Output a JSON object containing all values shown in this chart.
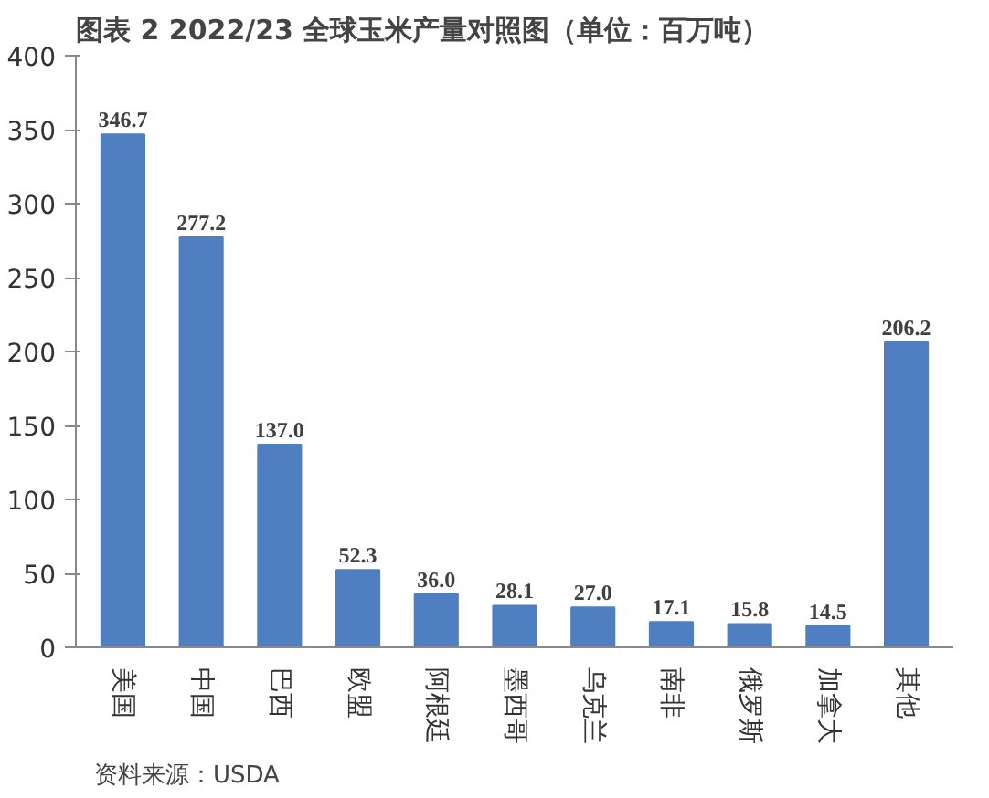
{
  "chart_data": {
    "type": "bar",
    "title": "图表 2 2022/23 全球玉米产量对照图（单位：百万吨）",
    "categories": [
      "美国",
      "中国",
      "巴西",
      "欧盟",
      "阿根廷",
      "墨西哥",
      "乌克兰",
      "南非",
      "俄罗斯",
      "加拿大",
      "其他"
    ],
    "values": [
      346.7,
      277.2,
      137.0,
      52.3,
      36.0,
      28.1,
      27.0,
      17.1,
      15.8,
      14.5,
      206.2
    ],
    "value_labels": [
      "346.7",
      "277.2",
      "137.0",
      "52.3",
      "36.0",
      "28.1",
      "27.0",
      "17.1",
      "15.8",
      "14.5",
      "206.2"
    ],
    "color": "#4f7fc1",
    "ylim": [
      0,
      400
    ],
    "yticks": [
      0,
      50,
      100,
      150,
      200,
      250,
      300,
      350,
      400
    ],
    "grid": false,
    "annotations": [
      "资料来源：USDA"
    ]
  }
}
